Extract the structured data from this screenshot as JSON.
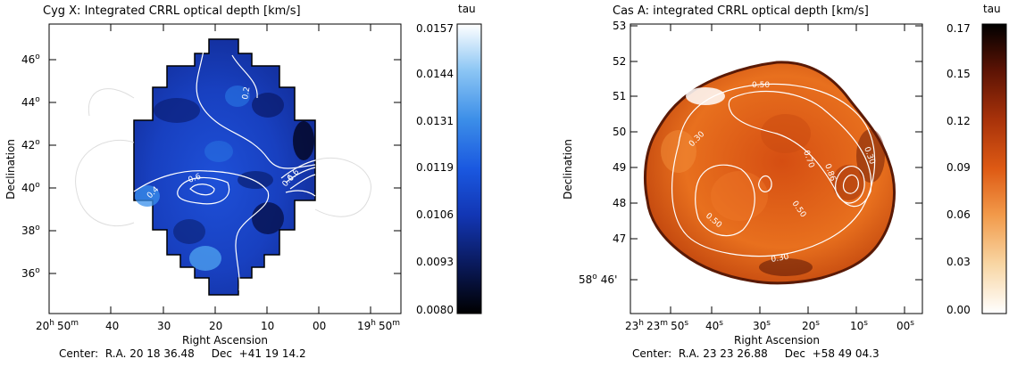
{
  "chart_data": [
    {
      "type": "heatmap",
      "title": "Cyg X: Integrated CRRL optical depth [km/s]",
      "xlabel": "Right Ascension",
      "ylabel": "Declination",
      "x_ticks": [
        {
          "h": "20",
          "hu": "h",
          "m": "50",
          "mu": "m"
        },
        {
          "h": "",
          "hu": "",
          "m": "40",
          "mu": ""
        },
        {
          "h": "",
          "hu": "",
          "m": "30",
          "mu": ""
        },
        {
          "h": "",
          "hu": "",
          "m": "20",
          "mu": ""
        },
        {
          "h": "",
          "hu": "",
          "m": "10",
          "mu": ""
        },
        {
          "h": "",
          "hu": "",
          "m": "00",
          "mu": ""
        },
        {
          "h": "19",
          "hu": "h",
          "m": "50",
          "mu": "m"
        }
      ],
      "y_ticks": [
        "46",
        "44",
        "42",
        "40",
        "38",
        "36"
      ],
      "degree_sign": "o",
      "center_text": "Center:  R.A. 20 18 36.48     Dec  +41 19 14.2",
      "colorbar": {
        "label": "tau",
        "ticks": [
          "0.0157",
          "0.0144",
          "0.0131",
          "0.0119",
          "0.0106",
          "0.0093",
          "0.0080"
        ],
        "range": [
          0.008,
          0.0157
        ],
        "colormap": [
          "#000000",
          "#0a1a5c",
          "#1236b4",
          "#1a58e0",
          "#3c8ee8",
          "#8cc6f4",
          "#ffffff"
        ]
      },
      "contour_labels": [
        "0.2",
        "0.6",
        "0.4",
        "0.6",
        "0.6"
      ]
    },
    {
      "type": "heatmap",
      "title": "Cas A: integrated CRRL optical depth [km/s]",
      "xlabel": "Right Ascension",
      "ylabel": "Declination",
      "x_ticks": [
        {
          "h": "23",
          "hu": "h",
          "m": "23",
          "mu": "m",
          "s": "50",
          "su": "s"
        },
        {
          "s": "40",
          "su": "s"
        },
        {
          "s": "30",
          "su": "s"
        },
        {
          "s": "20",
          "su": "s"
        },
        {
          "s": "10",
          "su": "s"
        },
        {
          "s": "00",
          "su": "s"
        }
      ],
      "y_ticks": [
        "53",
        "52",
        "51",
        "50",
        "49",
        "48",
        "47"
      ],
      "y_extra": {
        "deg": "58",
        "degu": "o",
        "min": "46'"
      },
      "center_text": "Center:  R.A. 23 23 26.88     Dec  +58 49 04.3",
      "colorbar": {
        "label": "tau",
        "ticks": [
          "0.17",
          "0.15",
          "0.12",
          "0.09",
          "0.06",
          "0.03",
          "0.00"
        ],
        "range": [
          0.0,
          0.17
        ],
        "colormap": [
          "#ffffff",
          "#f8d6a4",
          "#f29a4a",
          "#de5a14",
          "#a8320a",
          "#5c1304",
          "#000000"
        ]
      },
      "contour_labels": [
        "0.50",
        "0.30",
        "0.70",
        "0.86",
        "0.30",
        "0.50",
        "0.50",
        "0.30"
      ]
    }
  ]
}
